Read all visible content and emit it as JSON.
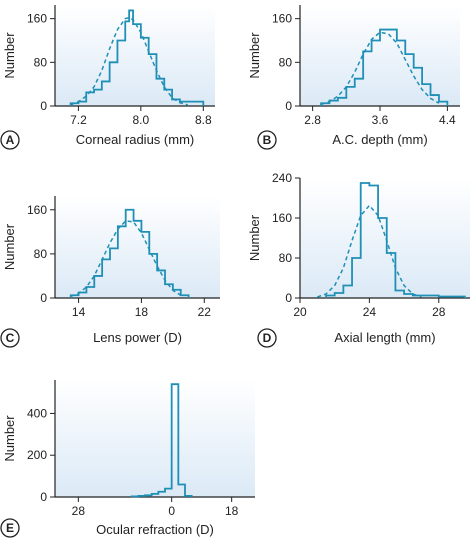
{
  "colors": {
    "histogram": "#1f8fb5",
    "fit_curve": "#1f8fb5",
    "panel_top": "#ffffff",
    "panel_bottom": "#dbe9f6",
    "axis": "#222222",
    "badge_fill": "#ffffff"
  },
  "chart_data": [
    {
      "type": "area",
      "panel": "A",
      "xlabel": "Corneal radius (mm)",
      "ylabel": "Number",
      "xlim": [
        6.9,
        8.95
      ],
      "ylim": [
        0,
        185
      ],
      "xticks": [
        7.2,
        8.0,
        8.8
      ],
      "xtick_labels": [
        "7.2",
        "8.0",
        "8.8"
      ],
      "yticks": [
        0,
        80,
        160
      ],
      "ytick_labels": [
        "0",
        "80",
        "160"
      ],
      "grid": false,
      "series": [
        {
          "style": "step-histogram",
          "x": [
            7.1,
            7.2,
            7.3,
            7.4,
            7.5,
            7.6,
            7.7,
            7.8,
            7.85,
            7.9,
            8.0,
            8.1,
            8.2,
            8.3,
            8.4,
            8.5,
            8.6,
            8.7
          ],
          "y": [
            5,
            8,
            25,
            30,
            45,
            80,
            120,
            155,
            175,
            150,
            125,
            95,
            50,
            30,
            12,
            8,
            8,
            8
          ]
        },
        {
          "style": "dashed-curve",
          "x": [
            7.1,
            7.2,
            7.3,
            7.4,
            7.5,
            7.6,
            7.7,
            7.8,
            7.85,
            7.9,
            8.0,
            8.1,
            8.2,
            8.3,
            8.4,
            8.5,
            8.6
          ],
          "y": [
            2,
            8,
            18,
            35,
            65,
            105,
            140,
            160,
            162,
            158,
            135,
            100,
            65,
            35,
            15,
            6,
            2
          ]
        }
      ]
    },
    {
      "type": "area",
      "panel": "B",
      "xlabel": "A.C. depth (mm)",
      "ylabel": "Number",
      "xlim": [
        2.65,
        4.55
      ],
      "ylim": [
        0,
        185
      ],
      "xticks": [
        2.8,
        3.6,
        4.4
      ],
      "xtick_labels": [
        "2.8",
        "3.6",
        "4.4"
      ],
      "yticks": [
        0,
        80,
        160
      ],
      "ytick_labels": [
        "0",
        "80",
        "160"
      ],
      "grid": false,
      "series": [
        {
          "style": "step-histogram",
          "x": [
            2.9,
            3.0,
            3.1,
            3.2,
            3.3,
            3.4,
            3.5,
            3.6,
            3.7,
            3.8,
            3.9,
            4.0,
            4.1,
            4.2,
            4.3
          ],
          "y": [
            5,
            10,
            15,
            35,
            50,
            100,
            120,
            140,
            140,
            120,
            95,
            70,
            40,
            20,
            8
          ]
        },
        {
          "style": "dashed-curve",
          "x": [
            2.9,
            3.0,
            3.1,
            3.2,
            3.3,
            3.4,
            3.5,
            3.6,
            3.7,
            3.8,
            3.9,
            4.0,
            4.1,
            4.2,
            4.3
          ],
          "y": [
            3,
            8,
            18,
            35,
            62,
            95,
            122,
            135,
            132,
            115,
            85,
            55,
            30,
            14,
            5
          ]
        }
      ]
    },
    {
      "type": "area",
      "panel": "C",
      "xlabel": "Lens power (D)",
      "ylabel": "Number",
      "xlim": [
        12.5,
        23
      ],
      "ylim": [
        0,
        185
      ],
      "xticks": [
        14,
        18,
        22
      ],
      "xtick_labels": [
        "14",
        "18",
        "22"
      ],
      "yticks": [
        0,
        80,
        160
      ],
      "ytick_labels": [
        "0",
        "80",
        "160"
      ],
      "grid": false,
      "series": [
        {
          "style": "step-histogram",
          "x": [
            13.5,
            14.0,
            14.5,
            15.0,
            15.5,
            16.0,
            16.5,
            17.0,
            17.5,
            18.0,
            18.5,
            19.0,
            19.5,
            20.0,
            20.5
          ],
          "y": [
            5,
            10,
            20,
            40,
            70,
            90,
            130,
            160,
            140,
            120,
            80,
            50,
            25,
            15,
            5
          ]
        },
        {
          "style": "dashed-curve",
          "x": [
            13.5,
            14.0,
            14.5,
            15.0,
            15.5,
            16.0,
            16.5,
            17.0,
            17.5,
            18.0,
            18.5,
            19.0,
            19.5,
            20.0,
            20.5
          ],
          "y": [
            3,
            8,
            20,
            40,
            70,
            100,
            125,
            140,
            138,
            118,
            88,
            58,
            32,
            14,
            5
          ]
        }
      ]
    },
    {
      "type": "area",
      "panel": "D",
      "xlabel": "Axial length (mm)",
      "ylabel": "Number",
      "xlim": [
        20,
        29.8
      ],
      "ylim": [
        0,
        240
      ],
      "xticks": [
        20,
        24,
        28
      ],
      "xtick_labels": [
        "20",
        "24",
        "28"
      ],
      "yticks": [
        0,
        80,
        160,
        240
      ],
      "ytick_labels": [
        "0",
        "80",
        "160",
        "240"
      ],
      "grid": false,
      "series": [
        {
          "style": "step-histogram",
          "x": [
            21.5,
            22.0,
            22.5,
            23.0,
            23.5,
            24.0,
            24.5,
            25.0,
            25.5,
            26.0,
            26.5,
            27.0,
            27.5,
            28.0,
            28.5,
            29.0
          ],
          "y": [
            5,
            10,
            25,
            80,
            230,
            225,
            160,
            90,
            15,
            8,
            5,
            5,
            5,
            3,
            3,
            3
          ]
        },
        {
          "style": "dashed-curve",
          "x": [
            21.0,
            21.5,
            22.0,
            22.5,
            23.0,
            23.5,
            24.0,
            24.5,
            25.0,
            25.5,
            26.0,
            26.5,
            27.0
          ],
          "y": [
            2,
            8,
            25,
            60,
            115,
            165,
            185,
            165,
            115,
            60,
            25,
            8,
            2
          ]
        }
      ]
    },
    {
      "type": "area",
      "panel": "E",
      "xlabel": "Ocular refraction (D)",
      "ylabel": "Number",
      "xlim": [
        -35,
        25
      ],
      "ylim": [
        0,
        560
      ],
      "xticks": [
        -28,
        0,
        18
      ],
      "xtick_labels": [
        "28",
        "0",
        "18"
      ],
      "yticks": [
        0,
        200,
        400
      ],
      "ytick_labels": [
        "0",
        "200",
        "400"
      ],
      "grid": false,
      "series": [
        {
          "style": "step-histogram",
          "x": [
            -12,
            -10,
            -8,
            -6,
            -4,
            -2,
            0,
            2,
            4
          ],
          "y": [
            3,
            5,
            8,
            15,
            25,
            40,
            540,
            60,
            5
          ]
        }
      ]
    }
  ],
  "badges": [
    "A",
    "B",
    "C",
    "D",
    "E"
  ]
}
